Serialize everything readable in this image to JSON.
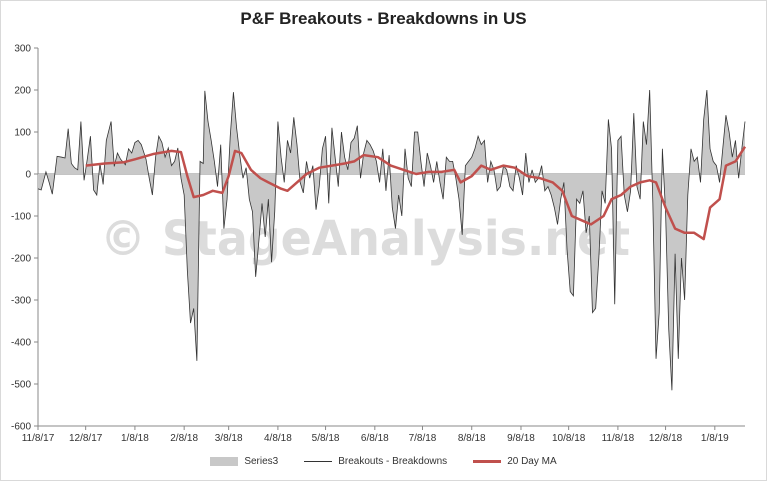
{
  "chart_data": {
    "type": "line",
    "title": "P&F Breakouts - Breakdowns in US",
    "xlabel": "",
    "ylabel": "",
    "ylim": [
      -600,
      300
    ],
    "yticks": [
      300,
      200,
      100,
      0,
      -100,
      -200,
      -300,
      -400,
      -500,
      -600
    ],
    "xticks": [
      "11/8/17",
      "12/8/17",
      "1/8/18",
      "2/8/18",
      "3/8/18",
      "4/8/18",
      "5/8/18",
      "6/8/18",
      "7/8/18",
      "8/8/18",
      "9/8/18",
      "10/8/18",
      "11/8/18",
      "12/8/18",
      "1/8/19"
    ],
    "x_start": "11/8/17",
    "x_end": "1/27/19",
    "grid": false,
    "legend_position": "bottom",
    "watermark": "© StageAnalysis.net",
    "series": [
      {
        "name": "Series3",
        "kind": "area",
        "color": "#c8c8c8",
        "points": [
          [
            "11/8/17",
            -35
          ],
          [
            "11/10/17",
            -38
          ],
          [
            "11/13/17",
            5
          ],
          [
            "11/15/17",
            -20
          ],
          [
            "11/17/17",
            -48
          ],
          [
            "11/20/17",
            42
          ],
          [
            "11/23/17",
            40
          ],
          [
            "11/25/17",
            38
          ],
          [
            "11/27/17",
            108
          ],
          [
            "11/29/17",
            25
          ],
          [
            "12/1/17",
            15
          ],
          [
            "12/3/17",
            10
          ],
          [
            "12/5/17",
            125
          ],
          [
            "12/7/17",
            -15
          ],
          [
            "12/9/17",
            35
          ],
          [
            "12/11/17",
            90
          ],
          [
            "12/13/17",
            -38
          ],
          [
            "12/15/17",
            -50
          ],
          [
            "12/17/17",
            25
          ],
          [
            "12/19/17",
            -25
          ],
          [
            "12/21/17",
            80
          ],
          [
            "12/24/17",
            125
          ],
          [
            "12/26/17",
            18
          ],
          [
            "12/28/17",
            50
          ],
          [
            "12/30/17",
            35
          ],
          [
            "1/2/18",
            22
          ],
          [
            "1/4/18",
            60
          ],
          [
            "1/6/18",
            50
          ],
          [
            "1/8/18",
            75
          ],
          [
            "1/10/18",
            80
          ],
          [
            "1/12/18",
            70
          ],
          [
            "1/15/18",
            35
          ],
          [
            "1/17/18",
            -10
          ],
          [
            "1/19/18",
            -50
          ],
          [
            "1/21/18",
            40
          ],
          [
            "1/23/18",
            90
          ],
          [
            "1/25/18",
            75
          ],
          [
            "1/27/18",
            40
          ],
          [
            "1/29/18",
            62
          ],
          [
            "1/31/18",
            20
          ],
          [
            "2/2/18",
            30
          ],
          [
            "2/4/18",
            62
          ],
          [
            "2/6/18",
            -10
          ],
          [
            "2/8/18",
            -50
          ],
          [
            "2/10/18",
            -230
          ],
          [
            "2/12/18",
            -355
          ],
          [
            "2/14/18",
            -320
          ],
          [
            "2/16/18",
            -445
          ],
          [
            "2/18/18",
            30
          ],
          [
            "2/20/18",
            25
          ],
          [
            "2/21/18",
            198
          ],
          [
            "2/23/18",
            125
          ],
          [
            "2/25/18",
            80
          ],
          [
            "2/27/18",
            30
          ],
          [
            "3/1/18",
            -30
          ],
          [
            "3/3/18",
            70
          ],
          [
            "3/5/18",
            -130
          ],
          [
            "3/7/18",
            -60
          ],
          [
            "3/9/18",
            90
          ],
          [
            "3/11/18",
            195
          ],
          [
            "3/13/18",
            110
          ],
          [
            "3/15/18",
            45
          ],
          [
            "3/17/18",
            -10
          ],
          [
            "3/19/18",
            15
          ],
          [
            "3/21/18",
            -60
          ],
          [
            "3/23/18",
            -90
          ],
          [
            "3/25/18",
            -245
          ],
          [
            "3/27/18",
            -160
          ],
          [
            "3/29/18",
            -70
          ],
          [
            "3/31/18",
            -150
          ],
          [
            "4/2/18",
            -60
          ],
          [
            "4/4/18",
            -210
          ],
          [
            "4/6/18",
            -90
          ],
          [
            "4/8/18",
            125
          ],
          [
            "4/10/18",
            40
          ],
          [
            "4/12/18",
            -20
          ],
          [
            "4/14/18",
            80
          ],
          [
            "4/16/18",
            50
          ],
          [
            "4/18/18",
            135
          ],
          [
            "4/20/18",
            70
          ],
          [
            "4/22/18",
            -20
          ],
          [
            "4/24/18",
            -45
          ],
          [
            "4/26/18",
            30
          ],
          [
            "4/28/18",
            -10
          ],
          [
            "4/30/18",
            20
          ],
          [
            "5/2/18",
            -85
          ],
          [
            "5/4/18",
            -30
          ],
          [
            "5/6/18",
            60
          ],
          [
            "5/8/18",
            90
          ],
          [
            "5/10/18",
            -70
          ],
          [
            "5/12/18",
            110
          ],
          [
            "5/14/18",
            40
          ],
          [
            "5/16/18",
            -30
          ],
          [
            "5/18/18",
            100
          ],
          [
            "5/20/18",
            40
          ],
          [
            "5/22/18",
            10
          ],
          [
            "5/24/18",
            75
          ],
          [
            "5/26/18",
            85
          ],
          [
            "5/28/18",
            115
          ],
          [
            "5/30/18",
            -10
          ],
          [
            "6/1/18",
            50
          ],
          [
            "6/3/18",
            80
          ],
          [
            "6/5/18",
            70
          ],
          [
            "6/7/18",
            55
          ],
          [
            "6/9/18",
            30
          ],
          [
            "6/11/18",
            -20
          ],
          [
            "6/13/18",
            60
          ],
          [
            "6/15/18",
            -40
          ],
          [
            "6/17/18",
            45
          ],
          [
            "6/19/18",
            -80
          ],
          [
            "6/21/18",
            -130
          ],
          [
            "6/23/18",
            -50
          ],
          [
            "6/25/18",
            -100
          ],
          [
            "6/27/18",
            60
          ],
          [
            "6/29/18",
            -10
          ],
          [
            "7/1/18",
            -30
          ],
          [
            "7/3/18",
            100
          ],
          [
            "7/5/18",
            100
          ],
          [
            "7/7/18",
            30
          ],
          [
            "7/9/18",
            -30
          ],
          [
            "7/11/18",
            50
          ],
          [
            "7/13/18",
            20
          ],
          [
            "7/15/18",
            -20
          ],
          [
            "7/17/18",
            30
          ],
          [
            "7/19/18",
            -20
          ],
          [
            "7/21/18",
            -60
          ],
          [
            "7/23/18",
            40
          ],
          [
            "7/25/18",
            30
          ],
          [
            "7/27/18",
            30
          ],
          [
            "7/29/18",
            -10
          ],
          [
            "7/31/18",
            -60
          ],
          [
            "8/2/18",
            -145
          ],
          [
            "8/4/18",
            20
          ],
          [
            "8/6/18",
            30
          ],
          [
            "8/8/18",
            40
          ],
          [
            "8/10/18",
            60
          ],
          [
            "8/12/18",
            90
          ],
          [
            "8/14/18",
            70
          ],
          [
            "8/16/18",
            80
          ],
          [
            "8/18/18",
            -20
          ],
          [
            "8/20/18",
            30
          ],
          [
            "8/22/18",
            10
          ],
          [
            "8/24/18",
            -40
          ],
          [
            "8/26/18",
            -30
          ],
          [
            "8/28/18",
            20
          ],
          [
            "8/30/18",
            10
          ],
          [
            "9/1/18",
            -30
          ],
          [
            "9/3/18",
            -40
          ],
          [
            "9/5/18",
            20
          ],
          [
            "9/7/18",
            -10
          ],
          [
            "9/9/18",
            -50
          ],
          [
            "9/11/18",
            50
          ],
          [
            "9/13/18",
            -20
          ],
          [
            "9/15/18",
            10
          ],
          [
            "9/17/18",
            -20
          ],
          [
            "9/19/18",
            -10
          ],
          [
            "9/21/18",
            20
          ],
          [
            "9/23/18",
            -40
          ],
          [
            "9/25/18",
            -30
          ],
          [
            "9/27/18",
            -50
          ],
          [
            "9/29/18",
            -80
          ],
          [
            "10/1/18",
            -120
          ],
          [
            "10/3/18",
            -60
          ],
          [
            "10/5/18",
            -20
          ],
          [
            "10/7/18",
            -180
          ],
          [
            "10/9/18",
            -280
          ],
          [
            "10/11/18",
            -290
          ],
          [
            "10/13/18",
            -60
          ],
          [
            "10/15/18",
            -70
          ],
          [
            "10/17/18",
            -40
          ],
          [
            "10/19/18",
            -140
          ],
          [
            "10/21/18",
            -100
          ],
          [
            "10/23/18",
            -330
          ],
          [
            "10/25/18",
            -320
          ],
          [
            "10/27/18",
            -200
          ],
          [
            "10/29/18",
            -40
          ],
          [
            "10/31/18",
            -70
          ],
          [
            "11/2/18",
            130
          ],
          [
            "11/4/18",
            60
          ],
          [
            "11/6/18",
            -310
          ],
          [
            "11/8/18",
            80
          ],
          [
            "11/10/18",
            90
          ],
          [
            "11/12/18",
            -50
          ],
          [
            "11/14/18",
            -90
          ],
          [
            "11/16/18",
            -40
          ],
          [
            "11/18/18",
            145
          ],
          [
            "11/20/18",
            -30
          ],
          [
            "11/22/18",
            -60
          ],
          [
            "11/24/18",
            125
          ],
          [
            "11/26/18",
            70
          ],
          [
            "11/28/18",
            200
          ],
          [
            "11/30/18",
            -70
          ],
          [
            "12/2/18",
            -440
          ],
          [
            "12/4/18",
            -330
          ],
          [
            "12/6/18",
            60
          ],
          [
            "12/8/18",
            -90
          ],
          [
            "12/10/18",
            -370
          ],
          [
            "12/12/18",
            -515
          ],
          [
            "12/14/18",
            -190
          ],
          [
            "12/16/18",
            -440
          ],
          [
            "12/18/18",
            -200
          ],
          [
            "12/20/18",
            -300
          ],
          [
            "12/22/18",
            -50
          ],
          [
            "12/24/18",
            60
          ],
          [
            "12/26/18",
            30
          ],
          [
            "12/28/18",
            40
          ],
          [
            "12/30/18",
            -20
          ],
          [
            "1/1/19",
            130
          ],
          [
            "1/3/19",
            200
          ],
          [
            "1/5/19",
            60
          ],
          [
            "1/7/19",
            30
          ],
          [
            "1/9/19",
            20
          ],
          [
            "1/11/19",
            -20
          ],
          [
            "1/13/19",
            60
          ],
          [
            "1/15/19",
            140
          ],
          [
            "1/17/19",
            100
          ],
          [
            "1/19/19",
            40
          ],
          [
            "1/21/19",
            80
          ],
          [
            "1/23/19",
            -10
          ],
          [
            "1/25/19",
            60
          ],
          [
            "1/27/19",
            125
          ]
        ]
      },
      {
        "name": "Breakouts - Breakdowns",
        "kind": "line",
        "color": "#333333",
        "same_as": "Series3"
      },
      {
        "name": "20 Day MA",
        "kind": "line",
        "color": "#c0504d",
        "points": [
          [
            "12/8/17",
            20
          ],
          [
            "12/20/17",
            25
          ],
          [
            "1/1/18",
            28
          ],
          [
            "1/8/18",
            35
          ],
          [
            "1/20/18",
            48
          ],
          [
            "1/31/18",
            55
          ],
          [
            "2/6/18",
            52
          ],
          [
            "2/10/18",
            -5
          ],
          [
            "2/14/18",
            -55
          ],
          [
            "2/20/18",
            -50
          ],
          [
            "2/26/18",
            -40
          ],
          [
            "3/4/18",
            -45
          ],
          [
            "3/8/18",
            -5
          ],
          [
            "3/12/18",
            55
          ],
          [
            "3/16/18",
            50
          ],
          [
            "3/22/18",
            10
          ],
          [
            "3/28/18",
            -10
          ],
          [
            "4/2/18",
            -20
          ],
          [
            "4/10/18",
            -35
          ],
          [
            "4/14/18",
            -40
          ],
          [
            "4/20/18",
            -20
          ],
          [
            "4/26/18",
            0
          ],
          [
            "5/4/18",
            15
          ],
          [
            "5/12/18",
            20
          ],
          [
            "5/20/18",
            25
          ],
          [
            "5/26/18",
            30
          ],
          [
            "6/1/18",
            45
          ],
          [
            "6/10/18",
            40
          ],
          [
            "6/18/18",
            20
          ],
          [
            "6/26/18",
            10
          ],
          [
            "7/4/18",
            0
          ],
          [
            "7/12/18",
            5
          ],
          [
            "7/20/18",
            5
          ],
          [
            "7/28/18",
            10
          ],
          [
            "8/1/18",
            -20
          ],
          [
            "8/8/18",
            -5
          ],
          [
            "8/14/18",
            20
          ],
          [
            "8/20/18",
            10
          ],
          [
            "8/28/18",
            20
          ],
          [
            "9/4/18",
            15
          ],
          [
            "9/12/18",
            -5
          ],
          [
            "9/20/18",
            -10
          ],
          [
            "9/28/18",
            -20
          ],
          [
            "10/4/18",
            -40
          ],
          [
            "10/10/18",
            -100
          ],
          [
            "10/16/18",
            -110
          ],
          [
            "10/22/18",
            -120
          ],
          [
            "10/30/18",
            -100
          ],
          [
            "11/4/18",
            -60
          ],
          [
            "11/10/18",
            -50
          ],
          [
            "11/16/18",
            -30
          ],
          [
            "11/22/18",
            -20
          ],
          [
            "11/28/18",
            -15
          ],
          [
            "12/2/18",
            -20
          ],
          [
            "12/8/18",
            -80
          ],
          [
            "12/14/18",
            -130
          ],
          [
            "12/20/18",
            -140
          ],
          [
            "12/26/18",
            -140
          ],
          [
            "1/1/19",
            -155
          ],
          [
            "1/5/19",
            -80
          ],
          [
            "1/11/19",
            -60
          ],
          [
            "1/15/19",
            20
          ],
          [
            "1/21/19",
            30
          ],
          [
            "1/27/19",
            65
          ]
        ]
      }
    ]
  }
}
